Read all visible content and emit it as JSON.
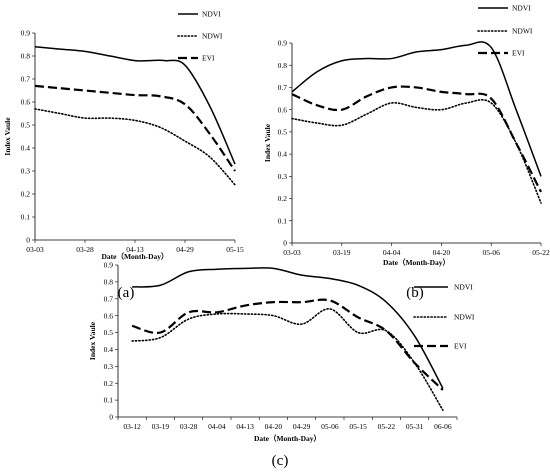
{
  "chart_data": [
    {
      "type": "line",
      "panel_label": "(a)",
      "xlabel": "Date（Month-Day）",
      "ylabel": "Index Vaule",
      "categories": [
        "03-03",
        "03-28",
        "04-13",
        "04-29",
        "05-15"
      ],
      "ylim": [
        0,
        0.9
      ],
      "yticks": [
        "0",
        "0.1",
        "0.2",
        "0.3",
        "0.4",
        "0.5",
        "0.6",
        "0.7",
        "0.8",
        "0.9"
      ],
      "legend_position": "top-right",
      "series": [
        {
          "name": "NDVI",
          "style": "solid",
          "x": [
            0,
            0.5,
            1,
            1.5,
            2,
            2.3,
            2.6,
            3,
            3.5,
            4
          ],
          "y": [
            0.84,
            0.83,
            0.82,
            0.8,
            0.78,
            0.78,
            0.78,
            0.76,
            0.58,
            0.33
          ]
        },
        {
          "name": "NDWI",
          "style": "dotted",
          "x": [
            0,
            0.5,
            1,
            1.5,
            2,
            2.5,
            3,
            3.5,
            4
          ],
          "y": [
            0.57,
            0.55,
            0.53,
            0.53,
            0.52,
            0.49,
            0.43,
            0.36,
            0.24
          ]
        },
        {
          "name": "EVI",
          "style": "dashed",
          "x": [
            0,
            0.5,
            1,
            1.5,
            2,
            2.5,
            3,
            3.5,
            4
          ],
          "y": [
            0.67,
            0.66,
            0.65,
            0.64,
            0.63,
            0.625,
            0.59,
            0.46,
            0.3
          ]
        }
      ]
    },
    {
      "type": "line",
      "panel_label": "(b)",
      "xlabel": "Date（Month-Day）",
      "ylabel": "Index Vaule",
      "categories": [
        "03-03",
        "03-19",
        "04-04",
        "04-20",
        "05-06",
        "05-22"
      ],
      "ylim": [
        0,
        0.9
      ],
      "yticks": [
        "0",
        "0.1",
        "0.2",
        "0.3",
        "0.4",
        "0.5",
        "0.6",
        "0.7",
        "0.8",
        "0.9"
      ],
      "legend_position": "top-right",
      "series": [
        {
          "name": "NDVI",
          "style": "solid",
          "x": [
            0,
            0.5,
            1,
            1.5,
            2,
            2.5,
            3,
            3.5,
            4,
            4.5,
            5
          ],
          "y": [
            0.68,
            0.77,
            0.82,
            0.83,
            0.83,
            0.86,
            0.87,
            0.89,
            0.88,
            0.6,
            0.3
          ]
        },
        {
          "name": "NDWI",
          "style": "dotted",
          "x": [
            0,
            0.5,
            1,
            1.5,
            2,
            2.5,
            3,
            3.5,
            4,
            4.5,
            5
          ],
          "y": [
            0.56,
            0.54,
            0.53,
            0.58,
            0.63,
            0.61,
            0.6,
            0.63,
            0.63,
            0.45,
            0.18
          ]
        },
        {
          "name": "EVI",
          "style": "dashed",
          "x": [
            0,
            0.5,
            1,
            1.5,
            2,
            2.5,
            3,
            3.5,
            4,
            4.5,
            5
          ],
          "y": [
            0.67,
            0.62,
            0.6,
            0.66,
            0.7,
            0.7,
            0.68,
            0.67,
            0.65,
            0.45,
            0.23
          ]
        }
      ]
    },
    {
      "type": "line",
      "panel_label": "(c)",
      "xlabel": "Date（Month-Day）",
      "ylabel": "Index Vaule",
      "categories": [
        "03-12",
        "03-19",
        "03-28",
        "04-04",
        "04-13",
        "04-20",
        "04-29",
        "05-06",
        "05-15",
        "05-22",
        "05-31",
        "06-06"
      ],
      "ylim": [
        0,
        0.9
      ],
      "yticks": [
        "0",
        "0.1",
        "0.2",
        "0.3",
        "0.4",
        "0.5",
        "0.6",
        "0.7",
        "0.8",
        "0.9"
      ],
      "legend_position": "top-right",
      "series": [
        {
          "name": "NDVI",
          "style": "solid",
          "x": [
            0,
            1,
            2,
            3,
            4,
            5,
            6,
            7,
            8,
            9,
            10,
            11
          ],
          "y": [
            0.77,
            0.78,
            0.86,
            0.875,
            0.88,
            0.88,
            0.84,
            0.82,
            0.78,
            0.68,
            0.48,
            0.17
          ]
        },
        {
          "name": "NDWI",
          "style": "dotted",
          "x": [
            0,
            1,
            2,
            3,
            4,
            5,
            6,
            7,
            8,
            9,
            10,
            11
          ],
          "y": [
            0.45,
            0.47,
            0.58,
            0.61,
            0.61,
            0.6,
            0.55,
            0.64,
            0.5,
            0.51,
            0.32,
            0.04
          ]
        },
        {
          "name": "EVI",
          "style": "dashed",
          "x": [
            0,
            1,
            2,
            3,
            4,
            5,
            6,
            7,
            8,
            9,
            10,
            11
          ],
          "y": [
            0.54,
            0.5,
            0.62,
            0.62,
            0.66,
            0.68,
            0.68,
            0.69,
            0.59,
            0.51,
            0.32,
            0.16
          ]
        }
      ]
    }
  ]
}
